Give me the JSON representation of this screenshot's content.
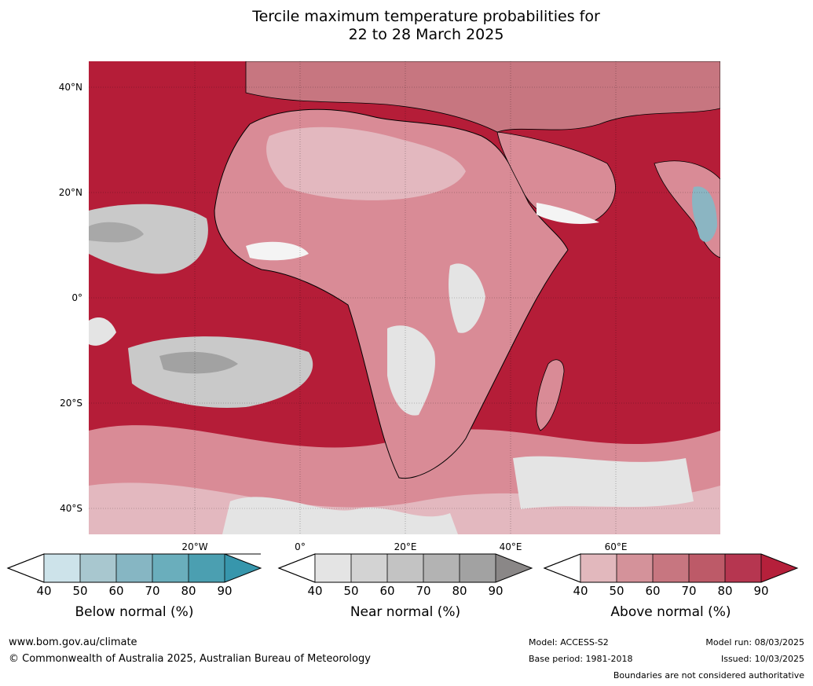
{
  "title": {
    "line1": "Tercile maximum temperature probabilities for",
    "line2": "22 to 28 March 2025"
  },
  "map": {
    "lat_labels": [
      "40°N",
      "20°N",
      "0°",
      "20°S",
      "40°S"
    ],
    "lon_labels": [
      "20°W",
      "0°",
      "20°E",
      "40°E",
      "60°E"
    ],
    "colors": {
      "ocean_warm": "#b51d38",
      "land_warm": "#d98b96",
      "land_pale": "#e3b8bf",
      "near_normal": "#c9c9c9",
      "below_normal": "#8bb5c2",
      "coastline": "#000000",
      "borders": "#808080"
    }
  },
  "colorbars": [
    {
      "label": "Below normal (%)",
      "ticks": [
        "40",
        "50",
        "60",
        "70",
        "80",
        "90"
      ],
      "colors": [
        "#cde3ea",
        "#a8c7cf",
        "#86b6c3",
        "#6aaebc",
        "#4b9fb1",
        "#3796ac"
      ]
    },
    {
      "label": "Near normal (%)",
      "ticks": [
        "40",
        "50",
        "60",
        "70",
        "80",
        "90"
      ],
      "colors": [
        "#e4e4e4",
        "#d3d3d3",
        "#c3c3c3",
        "#b3b3b3",
        "#a2a2a2",
        "#8a8787"
      ]
    },
    {
      "label": "Above normal (%)",
      "ticks": [
        "40",
        "50",
        "60",
        "70",
        "80",
        "90"
      ],
      "colors": [
        "#e2b8bd",
        "#d4929a",
        "#c77680",
        "#bd5a68",
        "#b63650",
        "#b5203b"
      ]
    }
  ],
  "footer": {
    "website": "www.bom.gov.au/climate",
    "copyright": "© Commonwealth of Australia 2025, Australian Bureau of Meteorology",
    "model": "Model: ACCESS-S2",
    "base_period": "Base period: 1981-2018",
    "model_run": "Model run: 08/03/2025",
    "issued": "Issued: 10/03/2025",
    "disclaimer": "Boundaries are not considered authoritative"
  }
}
